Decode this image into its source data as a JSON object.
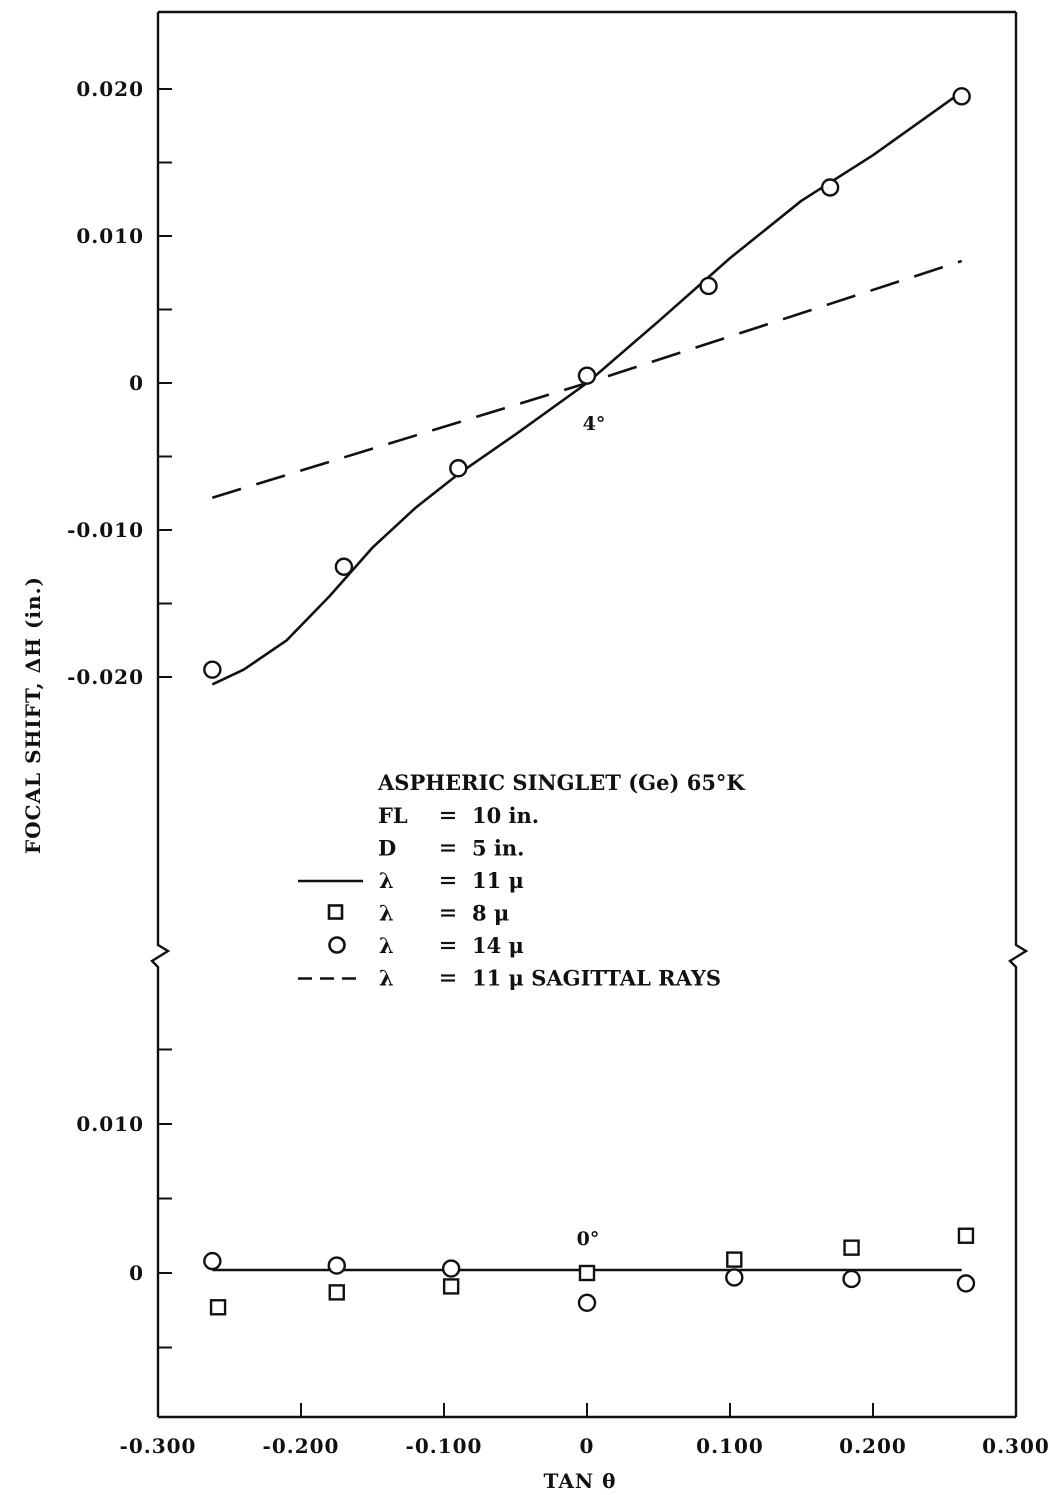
{
  "chart_data": {
    "type": "scatter",
    "xlabel": "TAN θ",
    "ylabel": "FOCAL SHIFT, ΔH (in.)",
    "xlim": [
      -0.3,
      0.3
    ],
    "x_ticks": [
      "-0.300",
      "-0.200",
      "-0.100",
      "0",
      "0.100",
      "0.200",
      "0.300"
    ],
    "x_tick_values": [
      -0.3,
      -0.2,
      -0.1,
      0,
      0.1,
      0.2,
      0.3
    ],
    "broken_axis": true,
    "upper_panel": {
      "annotation": "4°",
      "ylim": [
        -0.025,
        0.025
      ],
      "y_ticks": [
        "0.020",
        "0.010",
        "0",
        "-0.010",
        "-0.020"
      ],
      "y_tick_values": [
        0.02,
        0.01,
        0,
        -0.01,
        -0.02
      ],
      "series": [
        {
          "name": "λ = 11 μ",
          "style": "solid-line",
          "x": [
            -0.262,
            -0.24,
            -0.21,
            -0.18,
            -0.15,
            -0.12,
            -0.09,
            -0.05,
            0,
            0.05,
            0.1,
            0.15,
            0.2,
            0.262
          ],
          "y": [
            -0.0205,
            -0.0195,
            -0.0175,
            -0.0145,
            -0.0112,
            -0.0085,
            -0.0062,
            -0.0035,
            0.0,
            0.0042,
            0.0085,
            0.0124,
            0.0155,
            0.0198
          ]
        },
        {
          "name": "λ = 11 μ SAGITTAL RAYS",
          "style": "dashed-line",
          "x": [
            -0.262,
            0.0,
            0.262
          ],
          "y": [
            -0.0078,
            0.0,
            0.0083
          ]
        },
        {
          "name": "λ = 14 μ",
          "style": "circle",
          "x": [
            -0.262,
            -0.17,
            -0.09,
            0.0,
            0.085,
            0.17,
            0.262
          ],
          "y": [
            -0.0195,
            -0.0125,
            -0.0058,
            0.0005,
            0.0066,
            0.0133,
            0.0195
          ]
        }
      ]
    },
    "lower_panel": {
      "annotation": "0°",
      "ylim": [
        -0.01,
        0.02
      ],
      "y_ticks": [
        "0.010",
        "0"
      ],
      "y_tick_values": [
        0.01,
        0
      ],
      "series": [
        {
          "name": "λ = 11 μ",
          "style": "solid-line",
          "x": [
            -0.262,
            0.262
          ],
          "y": [
            0.0002,
            0.0002
          ]
        },
        {
          "name": "λ = 8 μ",
          "style": "square",
          "x": [
            -0.258,
            -0.175,
            -0.095,
            0.0,
            0.103,
            0.185,
            0.265
          ],
          "y": [
            -0.0023,
            -0.0013,
            -0.0009,
            0.0,
            0.0009,
            0.0017,
            0.0025
          ]
        },
        {
          "name": "λ = 14 μ",
          "style": "circle",
          "x": [
            -0.262,
            -0.175,
            -0.095,
            0.0,
            0.103,
            0.185,
            0.265
          ],
          "y": [
            0.0008,
            0.0005,
            0.0003,
            -0.002,
            -0.0003,
            -0.0004,
            -0.0007
          ]
        }
      ]
    },
    "legend": {
      "placement": "center",
      "title": "ASPHERIC SINGLET (Ge) 65°K",
      "lines": [
        {
          "key": "none",
          "label": "FL",
          "value": "10 in."
        },
        {
          "key": "none",
          "label": "D",
          "value": "5 in."
        },
        {
          "key": "solid-line",
          "label": "λ",
          "value": "11 μ"
        },
        {
          "key": "square",
          "label": "λ",
          "value": "8 μ"
        },
        {
          "key": "circle",
          "label": "λ",
          "value": "14 μ"
        },
        {
          "key": "dashed-line",
          "label": "λ",
          "value": "11 μ SAGITTAL RAYS"
        }
      ]
    }
  }
}
